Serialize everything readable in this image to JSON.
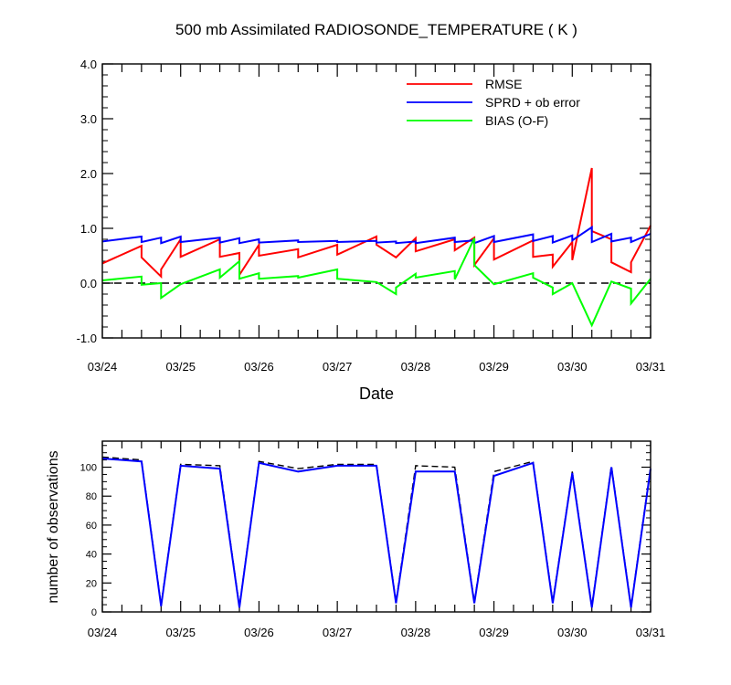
{
  "chart_data": [
    {
      "type": "line",
      "title": "500 mb Assimilated RADIOSONDE_TEMPERATURE ( K )",
      "xlabel": "Date",
      "ylabel": "",
      "xlim": [
        0,
        7
      ],
      "ylim": [
        -1.0,
        4.0
      ],
      "x_tick_labels": [
        "03/24",
        "03/25",
        "03/26",
        "03/27",
        "03/28",
        "03/29",
        "03/30",
        "03/31"
      ],
      "y_tick_labels": [
        "-1.0",
        "0.0",
        "1.0",
        "2.0",
        "3.0",
        "4.0"
      ],
      "grid": false,
      "legend_position": "top-right",
      "reference_line": {
        "y": 0.0,
        "style": "dashed",
        "color": "#000000"
      },
      "series": [
        {
          "name": "RMSE",
          "color": "#ff0000",
          "points": [
            [
              0.0,
              0.36
            ],
            [
              0.5,
              0.68
            ],
            [
              0.5,
              0.47
            ],
            [
              0.75,
              0.12
            ],
            [
              0.75,
              0.25
            ],
            [
              1.0,
              0.8
            ],
            [
              1.0,
              0.48
            ],
            [
              1.5,
              0.8
            ],
            [
              1.5,
              0.48
            ],
            [
              1.75,
              0.55
            ],
            [
              1.75,
              0.15
            ],
            [
              2.0,
              0.7
            ],
            [
              2.0,
              0.5
            ],
            [
              2.5,
              0.62
            ],
            [
              2.5,
              0.47
            ],
            [
              3.0,
              0.7
            ],
            [
              3.0,
              0.52
            ],
            [
              3.5,
              0.85
            ],
            [
              3.5,
              0.7
            ],
            [
              3.75,
              0.47
            ],
            [
              4.0,
              0.82
            ],
            [
              4.0,
              0.58
            ],
            [
              4.5,
              0.8
            ],
            [
              4.5,
              0.6
            ],
            [
              4.75,
              0.83
            ],
            [
              4.75,
              0.33
            ],
            [
              5.0,
              0.82
            ],
            [
              5.0,
              0.43
            ],
            [
              5.5,
              0.78
            ],
            [
              5.5,
              0.48
            ],
            [
              5.75,
              0.52
            ],
            [
              5.75,
              0.3
            ],
            [
              6.0,
              0.75
            ],
            [
              6.0,
              0.42
            ],
            [
              6.25,
              2.1
            ],
            [
              6.25,
              0.95
            ],
            [
              6.5,
              0.8
            ],
            [
              6.5,
              0.38
            ],
            [
              6.75,
              0.2
            ],
            [
              6.75,
              0.38
            ],
            [
              7.0,
              1.05
            ]
          ]
        },
        {
          "name": "SPRD + ob error",
          "color": "#0000ff",
          "points": [
            [
              0.0,
              0.76
            ],
            [
              0.5,
              0.85
            ],
            [
              0.5,
              0.75
            ],
            [
              0.75,
              0.83
            ],
            [
              0.75,
              0.73
            ],
            [
              1.0,
              0.85
            ],
            [
              1.0,
              0.75
            ],
            [
              1.5,
              0.83
            ],
            [
              1.5,
              0.74
            ],
            [
              1.75,
              0.82
            ],
            [
              1.75,
              0.73
            ],
            [
              2.0,
              0.8
            ],
            [
              2.0,
              0.74
            ],
            [
              2.5,
              0.78
            ],
            [
              2.5,
              0.75
            ],
            [
              3.0,
              0.77
            ],
            [
              3.0,
              0.75
            ],
            [
              3.5,
              0.77
            ],
            [
              3.5,
              0.74
            ],
            [
              3.75,
              0.76
            ],
            [
              3.75,
              0.73
            ],
            [
              4.0,
              0.76
            ],
            [
              4.0,
              0.73
            ],
            [
              4.5,
              0.83
            ],
            [
              4.5,
              0.75
            ],
            [
              4.75,
              0.78
            ],
            [
              4.75,
              0.73
            ],
            [
              5.0,
              0.86
            ],
            [
              5.0,
              0.75
            ],
            [
              5.5,
              0.89
            ],
            [
              5.5,
              0.77
            ],
            [
              5.75,
              0.86
            ],
            [
              5.75,
              0.74
            ],
            [
              6.0,
              0.87
            ],
            [
              6.0,
              0.78
            ],
            [
              6.25,
              1.02
            ],
            [
              6.25,
              0.75
            ],
            [
              6.5,
              0.9
            ],
            [
              6.5,
              0.76
            ],
            [
              6.75,
              0.83
            ],
            [
              6.75,
              0.75
            ],
            [
              7.0,
              0.9
            ]
          ]
        },
        {
          "name": "BIAS (O-F)",
          "color": "#00ff00",
          "points": [
            [
              0.0,
              0.05
            ],
            [
              0.5,
              0.12
            ],
            [
              0.5,
              -0.03
            ],
            [
              0.75,
              0.0
            ],
            [
              0.75,
              -0.27
            ],
            [
              1.0,
              -0.02
            ],
            [
              1.5,
              0.25
            ],
            [
              1.5,
              0.1
            ],
            [
              1.75,
              0.4
            ],
            [
              1.75,
              0.08
            ],
            [
              2.0,
              0.18
            ],
            [
              2.0,
              0.08
            ],
            [
              2.5,
              0.13
            ],
            [
              2.5,
              0.1
            ],
            [
              3.0,
              0.25
            ],
            [
              3.0,
              0.08
            ],
            [
              3.5,
              0.02
            ],
            [
              3.75,
              -0.2
            ],
            [
              3.75,
              -0.08
            ],
            [
              4.0,
              0.17
            ],
            [
              4.0,
              0.1
            ],
            [
              4.5,
              0.22
            ],
            [
              4.5,
              0.07
            ],
            [
              4.75,
              0.82
            ],
            [
              4.75,
              0.33
            ],
            [
              5.0,
              -0.02
            ],
            [
              5.5,
              0.18
            ],
            [
              5.5,
              0.1
            ],
            [
              5.75,
              -0.08
            ],
            [
              5.75,
              -0.2
            ],
            [
              6.0,
              0.0
            ],
            [
              6.25,
              -0.77
            ],
            [
              6.5,
              0.03
            ],
            [
              6.75,
              -0.1
            ],
            [
              6.75,
              -0.37
            ],
            [
              7.0,
              0.08
            ]
          ]
        }
      ]
    },
    {
      "type": "line",
      "title": "",
      "xlabel": "",
      "ylabel": "number of observations",
      "xlim": [
        0,
        7
      ],
      "ylim": [
        0,
        118
      ],
      "x_tick_labels": [
        "03/24",
        "03/25",
        "03/26",
        "03/27",
        "03/28",
        "03/29",
        "03/30",
        "03/31"
      ],
      "y_tick_labels": [
        "0",
        "20",
        "40",
        "60",
        "80",
        "100"
      ],
      "grid": false,
      "series": [
        {
          "color": "#000000",
          "style": "dashed",
          "points": [
            [
              0.0,
              107
            ],
            [
              0.5,
              105
            ],
            [
              0.75,
              5
            ],
            [
              1.0,
              102
            ],
            [
              1.5,
              101
            ],
            [
              1.75,
              4
            ],
            [
              2.0,
              104
            ],
            [
              2.5,
              99
            ],
            [
              3.0,
              102
            ],
            [
              3.5,
              102
            ],
            [
              3.75,
              7
            ],
            [
              4.0,
              101
            ],
            [
              4.5,
              100
            ],
            [
              4.75,
              7
            ],
            [
              5.0,
              97
            ],
            [
              5.5,
              104
            ],
            [
              5.75,
              7
            ],
            [
              6.0,
              97
            ],
            [
              6.25,
              4
            ],
            [
              6.5,
              101
            ],
            [
              6.75,
              4
            ],
            [
              7.0,
              100
            ]
          ]
        },
        {
          "color": "#0000ff",
          "style": "solid",
          "points": [
            [
              0.0,
              106
            ],
            [
              0.5,
              104
            ],
            [
              0.75,
              4
            ],
            [
              1.0,
              101
            ],
            [
              1.5,
              99
            ],
            [
              1.75,
              3
            ],
            [
              2.0,
              103
            ],
            [
              2.5,
              97
            ],
            [
              3.0,
              101
            ],
            [
              3.5,
              101
            ],
            [
              3.75,
              6
            ],
            [
              4.0,
              97
            ],
            [
              4.5,
              97
            ],
            [
              4.75,
              6
            ],
            [
              5.0,
              94
            ],
            [
              5.5,
              103
            ],
            [
              5.75,
              6
            ],
            [
              6.0,
              96
            ],
            [
              6.25,
              3
            ],
            [
              6.5,
              100
            ],
            [
              6.75,
              3
            ],
            [
              7.0,
              99
            ]
          ]
        }
      ]
    }
  ]
}
